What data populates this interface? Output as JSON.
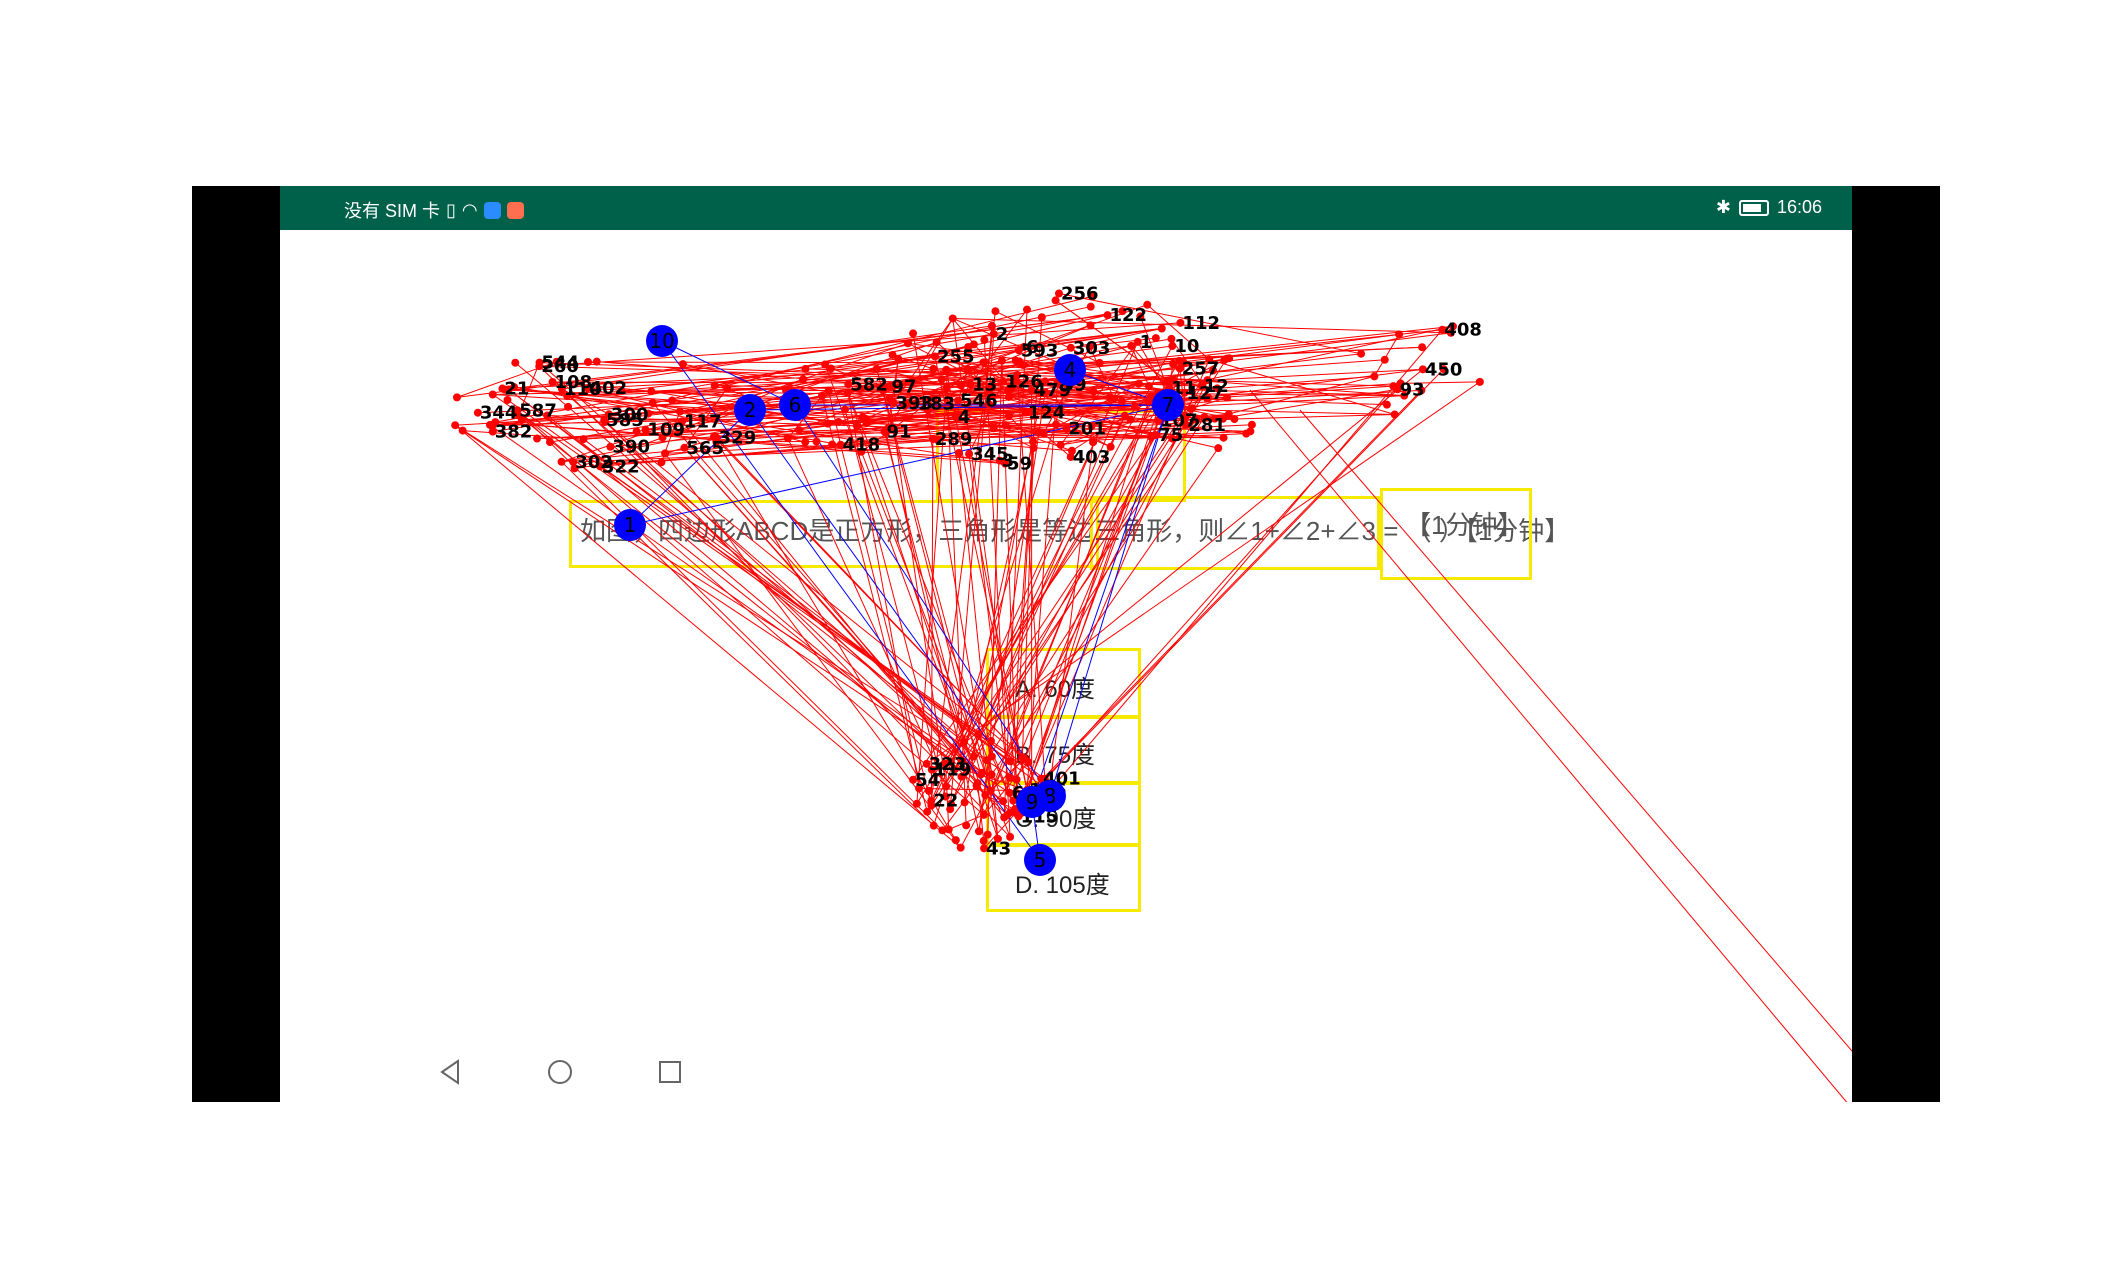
{
  "status_bar": {
    "carrier": "没有 SIM 卡",
    "time": "16:06",
    "color": "#00614a"
  },
  "question": {
    "text": "如图，四边形ABCD是正方形，三角形是等边三角形，则∠1+∠2+∠3 = （ ）【1分钟】",
    "time_tag": "【1分钟】",
    "options": [
      {
        "label": "A. 60度"
      },
      {
        "label": "B. 75度"
      },
      {
        "label": "C. 90度"
      },
      {
        "label": "D. 105度"
      }
    ]
  },
  "overlay": {
    "edge_color_red": "#ff0000",
    "edge_color_blue": "#0000ff",
    "node_color": "#ff0000",
    "hub_color": "#0000ff",
    "box_color": "#f6ea00",
    "hub_labels": [
      "1",
      "2",
      "4",
      "5",
      "6",
      "7",
      "8",
      "9",
      "10"
    ],
    "node_labels": [
      "344",
      "587",
      "382",
      "329",
      "117",
      "402",
      "390",
      "21",
      "585",
      "201",
      "183",
      "127",
      "393",
      "257",
      "593",
      "403",
      "13",
      "479",
      "112",
      "124",
      "255",
      "256",
      "122",
      "126",
      "39",
      "59",
      "54",
      "22",
      "115",
      "116",
      "401",
      "119",
      "43",
      "604",
      "85",
      "323",
      "450",
      "408",
      "93",
      "91",
      "418",
      "97",
      "582",
      "12",
      "11",
      "281",
      "107",
      "109",
      "110",
      "108",
      "322",
      "260",
      "302",
      "544",
      "565",
      "300",
      "303",
      "345",
      "546",
      "1",
      "2",
      "6",
      "3",
      "4",
      "75",
      "289",
      "10"
    ]
  },
  "nav": {
    "back": "back-icon",
    "home": "home-icon",
    "recents": "recents-icon"
  }
}
